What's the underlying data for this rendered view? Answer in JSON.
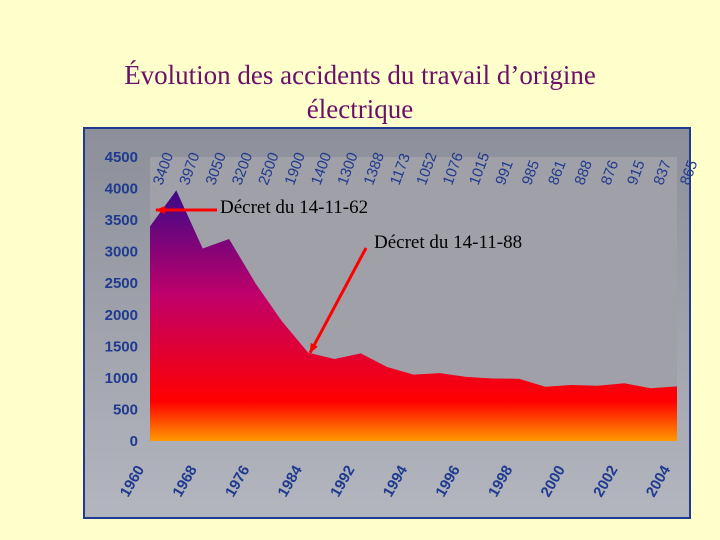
{
  "page": {
    "title_line1": "Évolution des accidents du travail d’origine",
    "title_line2": "électrique"
  },
  "chart_data": {
    "type": "area",
    "title": "Évolution des accidents du travail d’origine électrique",
    "xlabel": "",
    "ylabel": "",
    "ylim": [
      0,
      4500
    ],
    "yticks": [
      "4500",
      "4000",
      "3500",
      "3000",
      "2500",
      "2000",
      "1500",
      "1000",
      "500",
      "0"
    ],
    "xticks": [
      "1960",
      "1968",
      "1976",
      "1984",
      "1992",
      "1994",
      "1996",
      "1998",
      "2000",
      "2002",
      "2004"
    ],
    "values": [
      3400,
      3970,
      3050,
      3200,
      2500,
      1900,
      1400,
      1300,
      1388,
      1173,
      1052,
      1076,
      1015,
      991,
      985,
      861,
      888,
      876,
      915,
      837,
      865
    ],
    "data_labels": [
      "3400",
      "3970",
      "3050",
      "3200",
      "2500",
      "1900",
      "1400",
      "1300",
      "1388",
      "1173",
      "1052",
      "1076",
      "1015",
      "991",
      "985",
      "861",
      "888",
      "876",
      "915",
      "837",
      "865"
    ],
    "fill_colors": {
      "top": "#2a0a8c",
      "middle": "#c0006a",
      "bottom": "#ff0000",
      "base": "#ff9900"
    },
    "grid": false,
    "annotations": [
      {
        "text": "Décret du 14-11-62",
        "target_index": 0,
        "value": 3500
      },
      {
        "text": "Décret du 14-11-88",
        "target_index": 6,
        "value": 1400
      }
    ],
    "arrow_color": "#ff0000",
    "plot_background": "#a0a0a8"
  }
}
